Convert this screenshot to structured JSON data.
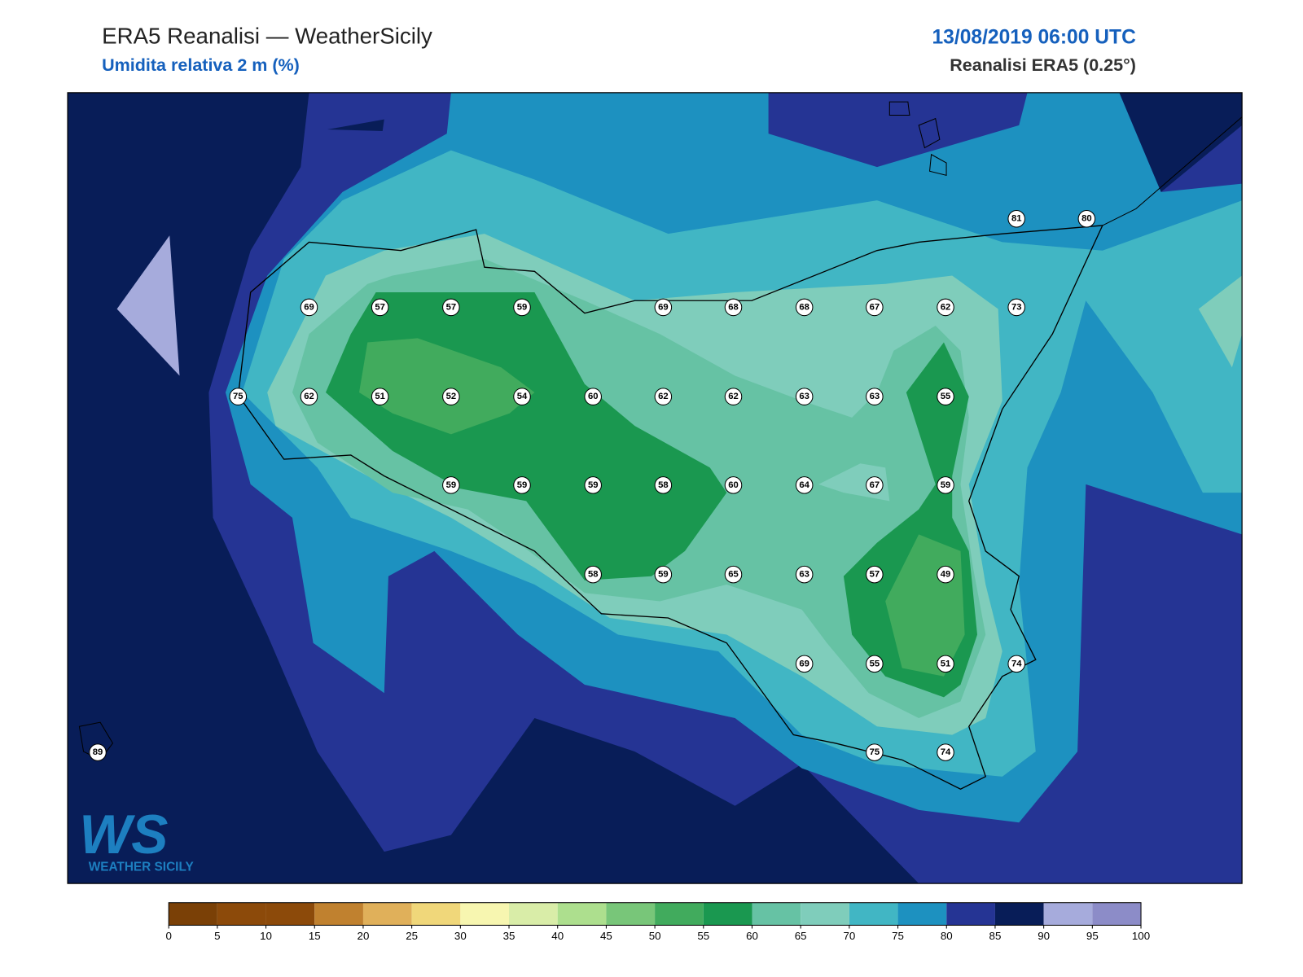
{
  "header": {
    "title": "ERA5 Reanalisi — WeatherSicily",
    "subtitle": "Umidita relativa 2 m (%)",
    "datetime": "13/08/2019 06:00 UTC",
    "source": "Reanalisi ERA5 (0.25°)"
  },
  "stations": [
    81,
    80,
    69,
    57,
    57,
    59,
    69,
    68,
    68,
    67,
    62,
    73,
    75,
    62,
    51,
    52,
    54,
    60,
    62,
    62,
    63,
    63,
    55,
    59,
    59,
    59,
    58,
    60,
    64,
    67,
    59,
    58,
    59,
    65,
    63,
    57,
    49,
    69,
    55,
    51,
    74,
    89,
    75,
    74
  ],
  "colorbar": {
    "ticks": [
      0,
      5,
      10,
      15,
      20,
      25,
      30,
      35,
      40,
      45,
      50,
      55,
      60,
      65,
      70,
      75,
      80,
      85,
      90,
      95,
      100
    ],
    "colors": [
      "#7a4006",
      "#8c4a0a",
      "#8c4a0a",
      "#c0812f",
      "#e0b05a",
      "#f0d77a",
      "#f7f6b0",
      "#d9eda8",
      "#addf8e",
      "#78c679",
      "#41ab5d",
      "#1a9850",
      "#66c2a4",
      "#7fcdbb",
      "#41b6c4",
      "#1d91c0",
      "#253494",
      "#081d58",
      "#a6abdc",
      "#8c8cc8"
    ]
  },
  "logo": {
    "mark": "WS",
    "name": "WEATHER SICILY"
  }
}
